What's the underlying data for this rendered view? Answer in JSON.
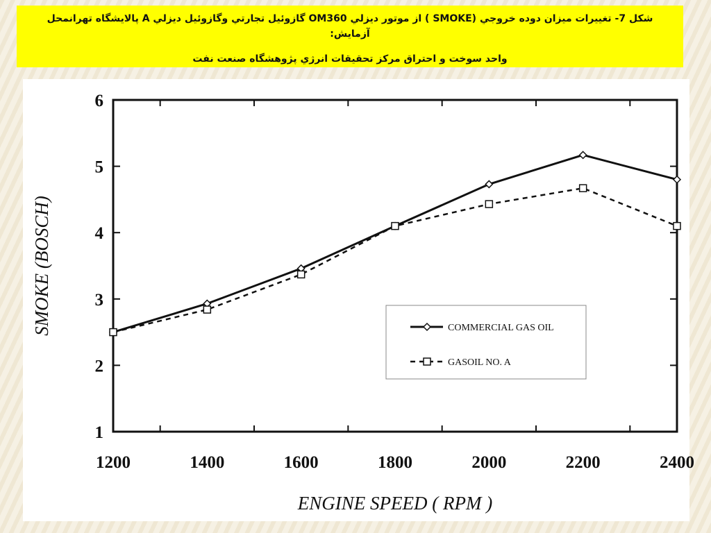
{
  "caption": {
    "line1": "شکل 7- تغییرات میزان دوده خروجي (SMOKE ) از موتور دیزلي  OM360 گازوئیل تجارتي وگازوئیل دیزلي A پالایشگاه تهرانمحل آزمایش:",
    "line2": "واحد سوخت و احتراق مرکز تحقیقات انرژي پژوهشگاه صنعت نفت"
  },
  "chart_data": {
    "type": "line",
    "xlabel": "ENGINE SPEED ( RPM )",
    "ylabel": "SMOKE (BOSCH)",
    "xlim": [
      1200,
      2400
    ],
    "ylim": [
      1,
      6
    ],
    "x_ticks": [
      1200,
      1400,
      1600,
      1800,
      2000,
      2200,
      2400
    ],
    "y_ticks": [
      1,
      2,
      3,
      4,
      5,
      6
    ],
    "grid": false,
    "legend_position": "right",
    "series": [
      {
        "name": "COMMERCIAL GAS OIL",
        "style": "solid",
        "marker": "diamond",
        "x": [
          1200,
          1400,
          1600,
          1800,
          2000,
          2200,
          2400
        ],
        "y": [
          2.5,
          2.93,
          3.46,
          4.1,
          4.73,
          5.17,
          4.8
        ]
      },
      {
        "name": "GASOIL NO. A",
        "style": "dashed",
        "marker": "square",
        "x": [
          1200,
          1400,
          1600,
          1800,
          2000,
          2200,
          2400
        ],
        "y": [
          2.5,
          2.84,
          3.37,
          4.1,
          4.43,
          4.67,
          4.1
        ]
      }
    ]
  }
}
